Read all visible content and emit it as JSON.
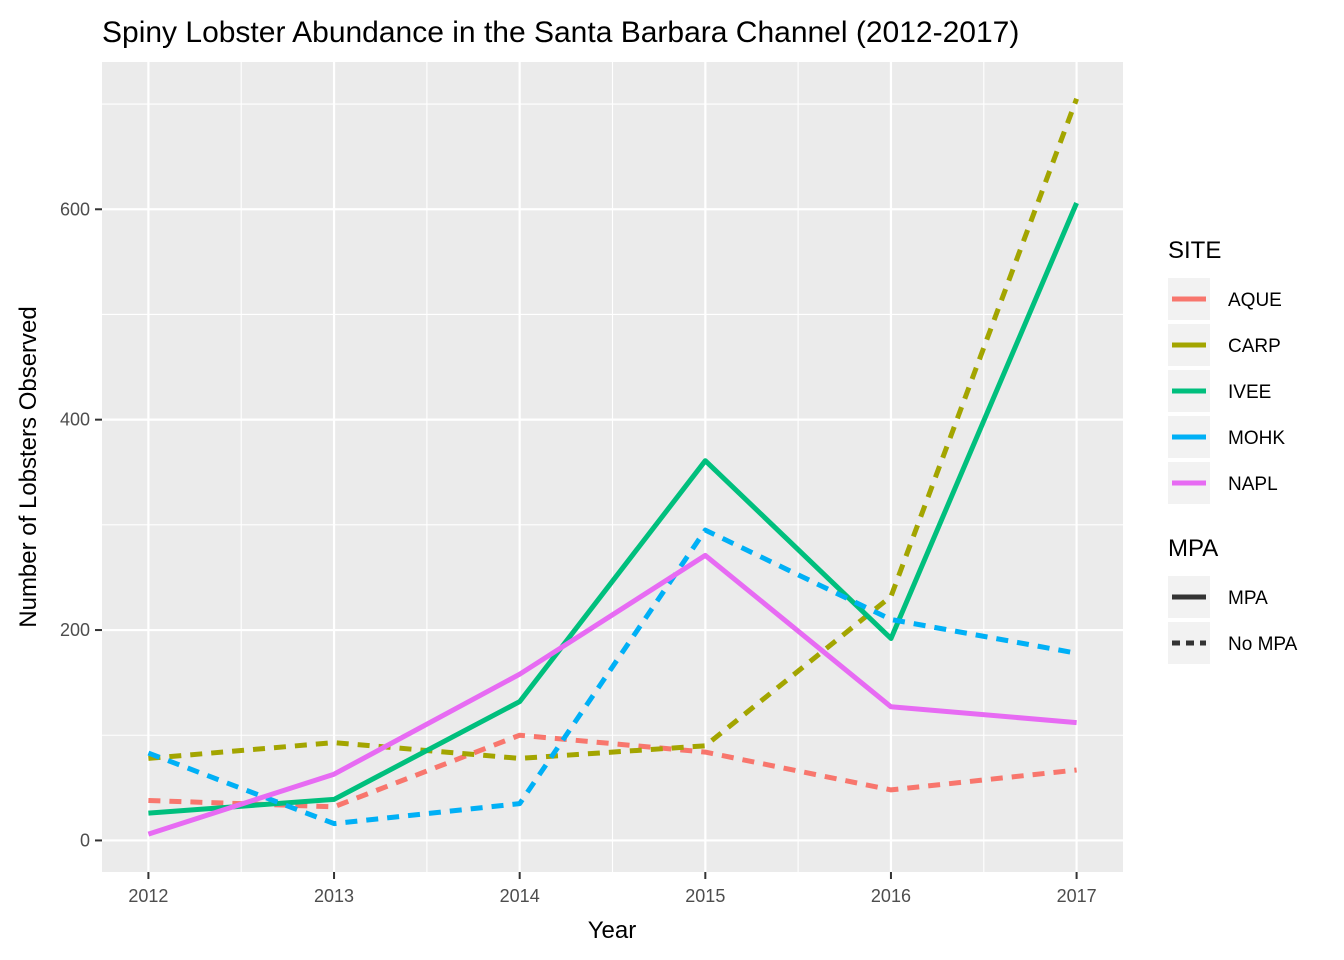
{
  "chart_data": {
    "type": "line",
    "title": "Spiny Lobster Abundance in the Santa Barbara Channel (2012-2017)",
    "xlabel": "Year",
    "ylabel": "Number of Lobsters Observed",
    "x": [
      2012,
      2013,
      2014,
      2015,
      2016,
      2017
    ],
    "x_ticks": [
      "2012",
      "2013",
      "2014",
      "2015",
      "2016",
      "2017"
    ],
    "y_ticks": [
      "0",
      "200",
      "400",
      "600"
    ],
    "xlim": [
      2011.75,
      2017.25
    ],
    "ylim": [
      -30,
      740
    ],
    "grid": true,
    "legend_position": "right",
    "series": [
      {
        "name": "AQUE",
        "mpa": "No MPA",
        "color": "#F8766D",
        "values": [
          38,
          32,
          100,
          84,
          48,
          67
        ]
      },
      {
        "name": "CARP",
        "mpa": "No MPA",
        "color": "#A3A500",
        "values": [
          78,
          93,
          78,
          90,
          232,
          705
        ]
      },
      {
        "name": "IVEE",
        "mpa": "MPA",
        "color": "#00BF7D",
        "values": [
          26,
          39,
          132,
          361,
          192,
          606
        ]
      },
      {
        "name": "MOHK",
        "mpa": "No MPA",
        "color": "#00B0F6",
        "values": [
          83,
          16,
          35,
          295,
          210,
          178
        ]
      },
      {
        "name": "NAPL",
        "mpa": "MPA",
        "color": "#E76BF3",
        "values": [
          6,
          63,
          158,
          271,
          127,
          112
        ]
      }
    ],
    "legends": [
      {
        "title": "SITE",
        "entries": [
          "AQUE",
          "CARP",
          "IVEE",
          "MOHK",
          "NAPL"
        ]
      },
      {
        "title": "MPA",
        "entries": [
          "MPA",
          "No MPA"
        ]
      }
    ]
  }
}
